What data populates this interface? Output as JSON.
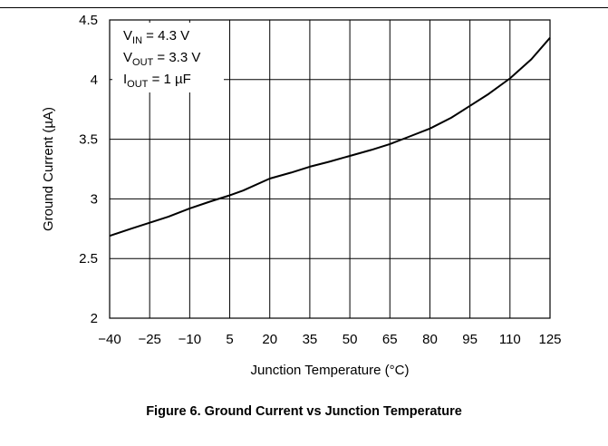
{
  "chart_data": {
    "type": "line",
    "title": "",
    "xlabel": "Junction Temperature (°C)",
    "ylabel": "Ground Current (µA)",
    "xlim": [
      -40,
      125
    ],
    "ylim": [
      2,
      4.5
    ],
    "xticks": [
      "−40",
      "−25",
      "−10",
      "5",
      "20",
      "35",
      "50",
      "65",
      "80",
      "95",
      "110",
      "125"
    ],
    "yticks": [
      "2",
      "2.5",
      "3",
      "3.5",
      "4",
      "4.5"
    ],
    "grid": true,
    "annotation": [
      {
        "main": "V",
        "sub": "IN",
        "rest": " = 4.3 V"
      },
      {
        "main": "V",
        "sub": "OUT",
        "rest": " = 3.3 V"
      },
      {
        "main": "I",
        "sub": "OUT",
        "rest": " = 1 µF"
      }
    ],
    "series": [
      {
        "x": [
          -40,
          -32,
          -25,
          -18,
          -10,
          -2,
          5,
          10,
          20,
          28,
          35,
          42,
          50,
          58,
          65,
          72,
          80,
          88,
          95,
          102,
          110,
          118,
          125
        ],
        "y": [
          2.69,
          2.75,
          2.8,
          2.85,
          2.92,
          2.98,
          3.03,
          3.07,
          3.17,
          3.22,
          3.27,
          3.31,
          3.36,
          3.41,
          3.46,
          3.52,
          3.59,
          3.68,
          3.78,
          3.88,
          4.01,
          4.17,
          4.35
        ]
      }
    ]
  },
  "caption": "Figure 6. Ground Current vs Junction Temperature"
}
